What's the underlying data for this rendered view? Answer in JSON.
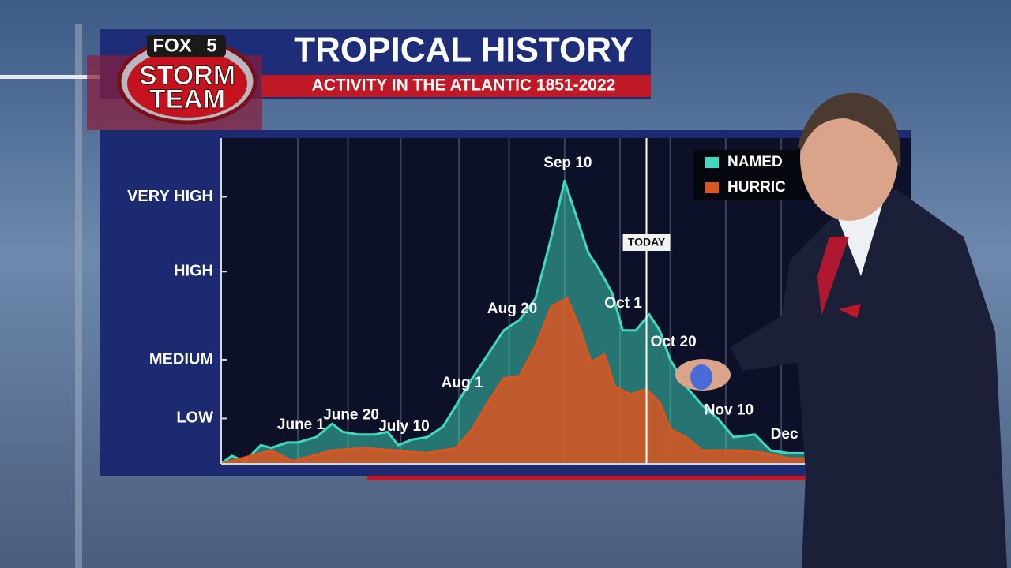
{
  "header": {
    "logo": {
      "brand": "FOX",
      "channel": "5",
      "line1": "STORM",
      "line2": "TEAM"
    },
    "title": "TROPICAL HISTORY",
    "subtitle": "ACTIVITY IN THE ATLANTIC 1851-2022"
  },
  "chart_data": {
    "type": "area",
    "xlim": [
      -29,
      232
    ],
    "ylim": [
      0,
      122
    ],
    "grid": true,
    "legend": "top-right",
    "xticks": [
      {
        "value": 0,
        "label": "June 1"
      },
      {
        "value": 19,
        "label": "June 20"
      },
      {
        "value": 39,
        "label": "July 10"
      },
      {
        "value": 61,
        "label": "Aug 1"
      },
      {
        "value": 80,
        "label": "Aug 20"
      },
      {
        "value": 101,
        "label": "Sep 10"
      },
      {
        "value": 122,
        "label": "Oct 1"
      },
      {
        "value": 141,
        "label": "Oct 20"
      },
      {
        "value": 162,
        "label": "Nov 10"
      },
      {
        "value": 183,
        "label": "Dec"
      }
    ],
    "yticks": [
      {
        "value": 17,
        "label": "LOW"
      },
      {
        "value": 39,
        "label": "MEDIUM"
      },
      {
        "value": 72,
        "label": "HIGH"
      },
      {
        "value": 100,
        "label": "VERY HIGH"
      }
    ],
    "today": {
      "value": 132,
      "label": "TODAY"
    },
    "series": [
      {
        "name": "NAMED",
        "color": "#3fd9bd",
        "x": [
          -29,
          -25,
          -20,
          -14,
          -10,
          -4,
          0,
          7,
          13,
          17,
          23,
          29,
          34,
          38,
          43,
          49,
          55,
          60,
          66,
          72,
          78,
          84,
          90,
          96,
          101,
          105,
          110,
          114,
          119,
          123,
          128,
          133,
          137,
          141,
          147,
          153,
          159,
          165,
          173,
          179,
          186,
          192
        ],
        "values": [
          0,
          3,
          1,
          7,
          6,
          8,
          8,
          10,
          15,
          12,
          11,
          11,
          12,
          7,
          9,
          10,
          14,
          22,
          32,
          41,
          50,
          54,
          62,
          85,
          106,
          94,
          79,
          73,
          64,
          50,
          50,
          56,
          50,
          39,
          29,
          22,
          17,
          10,
          11,
          5,
          4,
          4
        ]
      },
      {
        "name": "HURRIC",
        "color": "#d9561f",
        "x": [
          -29,
          -14,
          -10,
          -2,
          13,
          25,
          37,
          49,
          60,
          66,
          72,
          78,
          84,
          90,
          96,
          102,
          107,
          111,
          116,
          120,
          126,
          132,
          137,
          141,
          147,
          153,
          159,
          168,
          177,
          186,
          192
        ],
        "values": [
          0,
          4,
          5,
          1,
          5,
          6,
          5,
          4,
          6,
          13,
          23,
          32,
          33,
          44,
          59,
          62,
          50,
          38,
          41,
          29,
          26,
          28,
          23,
          13,
          10,
          5,
          5,
          5,
          4,
          2,
          2
        ]
      }
    ]
  }
}
